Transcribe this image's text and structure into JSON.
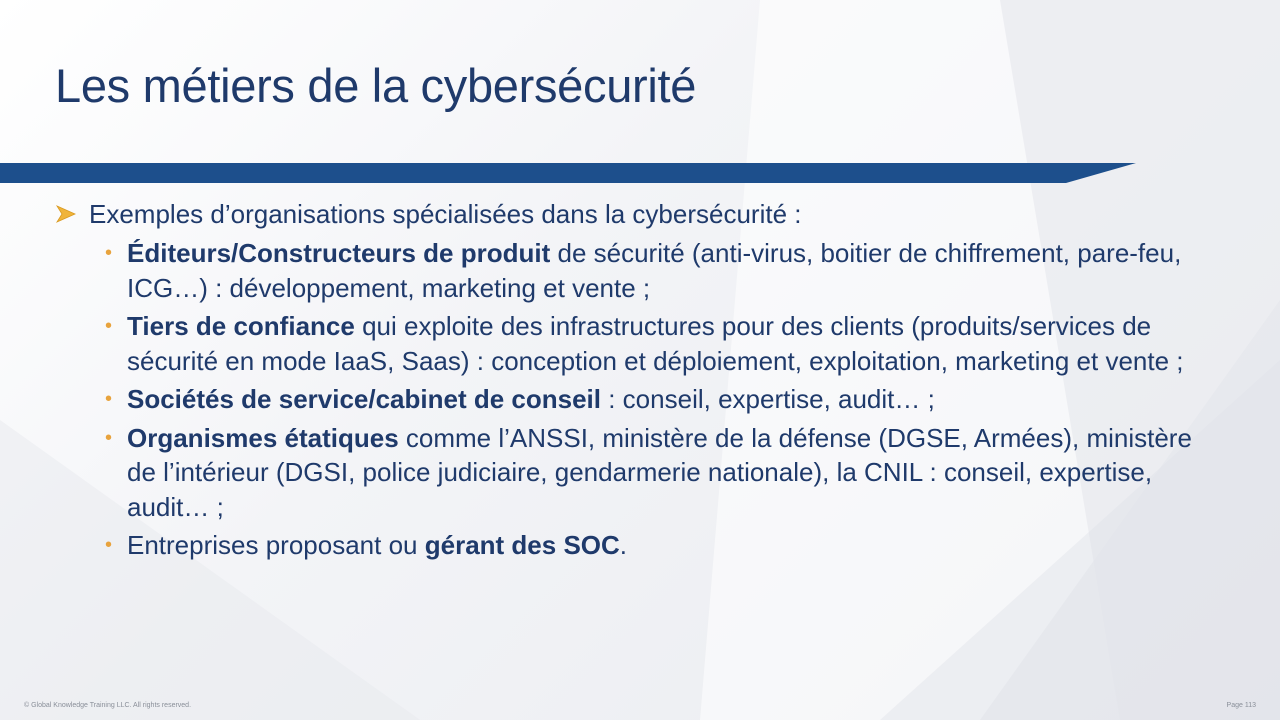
{
  "slide": {
    "title": "Les métiers de la cybersécurité",
    "intro_bullet": "Exemples d’organisations spécialisées dans la cybersécurité :",
    "items": [
      {
        "bold": "Éditeurs/Constructeurs de produit",
        "text": " de sécurité (anti-virus, boitier de chiffrement, pare-feu, ICG…) : développement, marketing et vente ;",
        "bold_after": "",
        "tail": ""
      },
      {
        "bold": "Tiers de confiance",
        "text": " qui exploite des infrastructures pour des clients (produits/services de sécurité en mode IaaS, Saas) : conception et déploiement, exploitation, marketing et vente ;",
        "bold_after": "",
        "tail": ""
      },
      {
        "bold": "Sociétés de service/cabinet de conseil",
        "text": " : conseil, expertise, audit… ;",
        "bold_after": "",
        "tail": ""
      },
      {
        "bold": "Organismes étatiques",
        "text": " comme l’ANSSI, ministère de la défense (DGSE, Armées), ministère de l’intérieur (DGSI, police judiciaire, gendarmerie nationale), la CNIL : conseil, expertise, audit… ;",
        "bold_after": "",
        "tail": ""
      },
      {
        "bold": "",
        "text": "Entreprises proposant ou ",
        "bold_after": "gérant des SOC",
        "tail": "."
      }
    ]
  },
  "footer": {
    "copyright": "© Global Knowledge  Training LLC. All rights reserved.",
    "page": "Page  113"
  },
  "colors": {
    "title": "#1f3a6b",
    "bar": "#1d4f8c",
    "bullet_dot": "#e8a33d",
    "arrow": "#f0b43a"
  }
}
